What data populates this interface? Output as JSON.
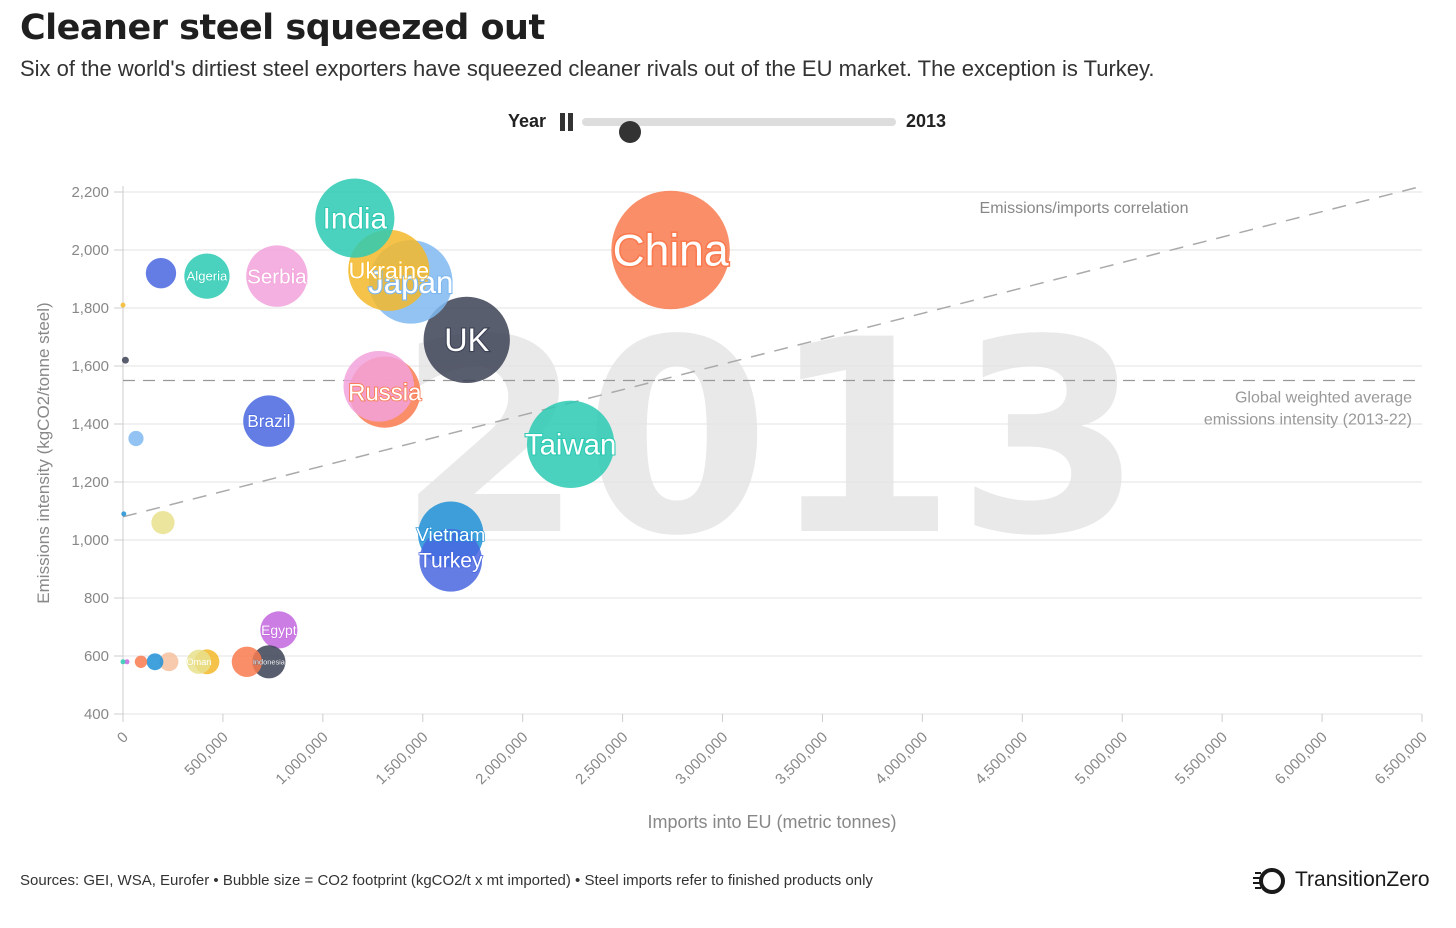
{
  "header": {
    "title": "Cleaner steel squeezed out",
    "subtitle": "Six of the world's dirtiest steel exporters have squeezed cleaner rivals out of the EU market. The exception is Turkey."
  },
  "controls": {
    "year_label": "Year",
    "year_value": "2013",
    "slider_position": 0.14
  },
  "footer": {
    "sources": "Sources: GEI, WSA, Eurofer • Bubble size = CO2 footprint (kgCO2/t x mt imported) • Steel imports refer to finished products only",
    "brand": "TransitionZero"
  },
  "chart_data": {
    "type": "scatter",
    "variant": "bubble",
    "background_label": "2013",
    "xlabel": "Imports into EU (metric tonnes)",
    "ylabel": "Emissions intensity (kgCO2/tonne steel)",
    "xlim": [
      0,
      6500000
    ],
    "ylim": [
      400,
      2200
    ],
    "x_ticks": [
      0,
      500000,
      1000000,
      1500000,
      2000000,
      2500000,
      3000000,
      3500000,
      4000000,
      4500000,
      5000000,
      5500000,
      6000000,
      6500000
    ],
    "x_tick_labels": [
      "0",
      "500,000",
      "1,000,000",
      "1,500,000",
      "2,000,000",
      "2,500,000",
      "3,000,000",
      "3,500,000",
      "4,000,000",
      "4,500,000",
      "5,000,000",
      "5,500,000",
      "6,000,000",
      "6,500,000"
    ],
    "y_ticks": [
      400,
      600,
      800,
      1000,
      1200,
      1400,
      1600,
      1800,
      2000,
      2200
    ],
    "y_tick_labels": [
      "400",
      "600",
      "800",
      "1,000",
      "1,200",
      "1,400",
      "1,600",
      "1,800",
      "2,000",
      "2,200"
    ],
    "grid": "horizontal",
    "reference_lines": [
      {
        "kind": "horizontal",
        "y": 1550,
        "label_lines": [
          "Global weighted average",
          "emissions intensity (2013-22)"
        ],
        "color": "#999999"
      },
      {
        "kind": "trend",
        "from": [
          0,
          1080
        ],
        "to": [
          6500000,
          2220
        ],
        "label": "Emissions/imports correlation",
        "color": "#aaaaaa"
      }
    ],
    "bubbles": [
      {
        "label": "China",
        "x": 2740000,
        "y": 2000,
        "size": 5480,
        "color": "#f97a4f"
      },
      {
        "label": "India",
        "x": 1160000,
        "y": 2110,
        "size": 2450,
        "color": "#2ccab3"
      },
      {
        "label": "Japan",
        "x": 1440000,
        "y": 1890,
        "size": 2720,
        "color": "#7fb8f0"
      },
      {
        "label": "Ukraine",
        "x": 1330000,
        "y": 1930,
        "size": 2570,
        "color": "#f5b82a"
      },
      {
        "label": "UK",
        "x": 1720000,
        "y": 1690,
        "size": 2910,
        "color": "#3c4255"
      },
      {
        "label": "Russia",
        "x": 1310000,
        "y": 1510,
        "size": 1980,
        "color": "#f97a4f"
      },
      {
        "label": "",
        "x": 1280000,
        "y": 1530,
        "size": 1950,
        "color": "#f2a2da"
      },
      {
        "label": "Taiwan",
        "x": 2240000,
        "y": 1330,
        "size": 2980,
        "color": "#2ccab3"
      },
      {
        "label": "Vietnam",
        "x": 1640000,
        "y": 1020,
        "size": 1670,
        "color": "#1e90d6"
      },
      {
        "label": "Turkey",
        "x": 1640000,
        "y": 930,
        "size": 1530,
        "color": "#4866e0"
      },
      {
        "label": "Serbia",
        "x": 770000,
        "y": 1910,
        "size": 1470,
        "color": "#f2a2da"
      },
      {
        "label": "Algeria",
        "x": 420000,
        "y": 1910,
        "size": 800,
        "color": "#2ccab3"
      },
      {
        "label": "",
        "x": 190000,
        "y": 1920,
        "size": 360,
        "color": "#4866e0"
      },
      {
        "label": "Brazil",
        "x": 730000,
        "y": 1410,
        "size": 1030,
        "color": "#4866e0"
      },
      {
        "label": "Egypt",
        "x": 780000,
        "y": 690,
        "size": 540,
        "color": "#c266de"
      },
      {
        "label": "",
        "x": 200000,
        "y": 1060,
        "size": 210,
        "color": "#e7e08c"
      },
      {
        "label": "",
        "x": 65000,
        "y": 1350,
        "size": 90,
        "color": "#7fb8f0"
      },
      {
        "label": "",
        "x": 12000,
        "y": 1620,
        "size": 19,
        "color": "#3c4255"
      },
      {
        "label": "",
        "x": 0,
        "y": 1810,
        "size": 2,
        "color": "#f5b82a"
      },
      {
        "label": "",
        "x": 4000,
        "y": 1090,
        "size": 4,
        "color": "#1e90d6"
      },
      {
        "label": "Indonesia",
        "x": 730000,
        "y": 580,
        "size": 430,
        "color": "#3c4255"
      },
      {
        "label": "",
        "x": 620000,
        "y": 580,
        "size": 360,
        "color": "#f97a4f"
      },
      {
        "label": "",
        "x": 420000,
        "y": 580,
        "size": 240,
        "color": "#f5b82a"
      },
      {
        "label": "Oman",
        "x": 380000,
        "y": 580,
        "size": 230,
        "color": "#e7e08c"
      },
      {
        "label": "",
        "x": 230000,
        "y": 580,
        "size": 140,
        "color": "#f7c19f"
      },
      {
        "label": "",
        "x": 160000,
        "y": 580,
        "size": 110,
        "color": "#1e90d6"
      },
      {
        "label": "",
        "x": 90000,
        "y": 580,
        "size": 60,
        "color": "#f97a4f"
      },
      {
        "label": "",
        "x": 20000,
        "y": 580,
        "size": 6,
        "color": "#c266de"
      },
      {
        "label": "",
        "x": 0,
        "y": 580,
        "size": 3,
        "color": "#2ccab3"
      }
    ]
  }
}
